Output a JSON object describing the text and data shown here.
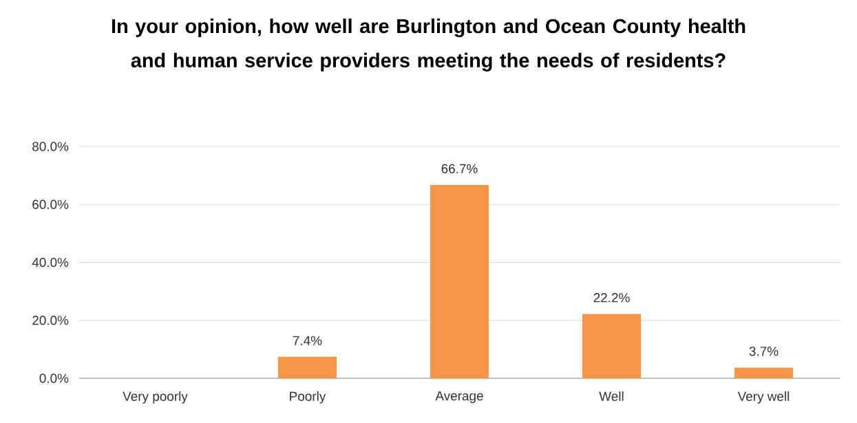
{
  "chart_data": {
    "type": "bar",
    "title": "In your opinion, how well are Burlington and Ocean County health and human service providers meeting the needs of residents?",
    "categories": [
      "Very poorly",
      "Poorly",
      "Average",
      "Well",
      "Very well"
    ],
    "values": [
      0,
      7.4,
      66.7,
      22.2,
      3.7
    ],
    "value_labels": [
      null,
      "7.4%",
      "66.7%",
      "22.2%",
      "3.7%"
    ],
    "color": "#f79646",
    "ylim": [
      0,
      80
    ],
    "yticks": [
      {
        "value": 0,
        "label": "0.0%"
      },
      {
        "value": 20,
        "label": "20.0%"
      },
      {
        "value": 40,
        "label": "40.0%"
      },
      {
        "value": 60,
        "label": "60.0%"
      },
      {
        "value": 80,
        "label": "80.0%"
      }
    ],
    "grid": "y"
  }
}
